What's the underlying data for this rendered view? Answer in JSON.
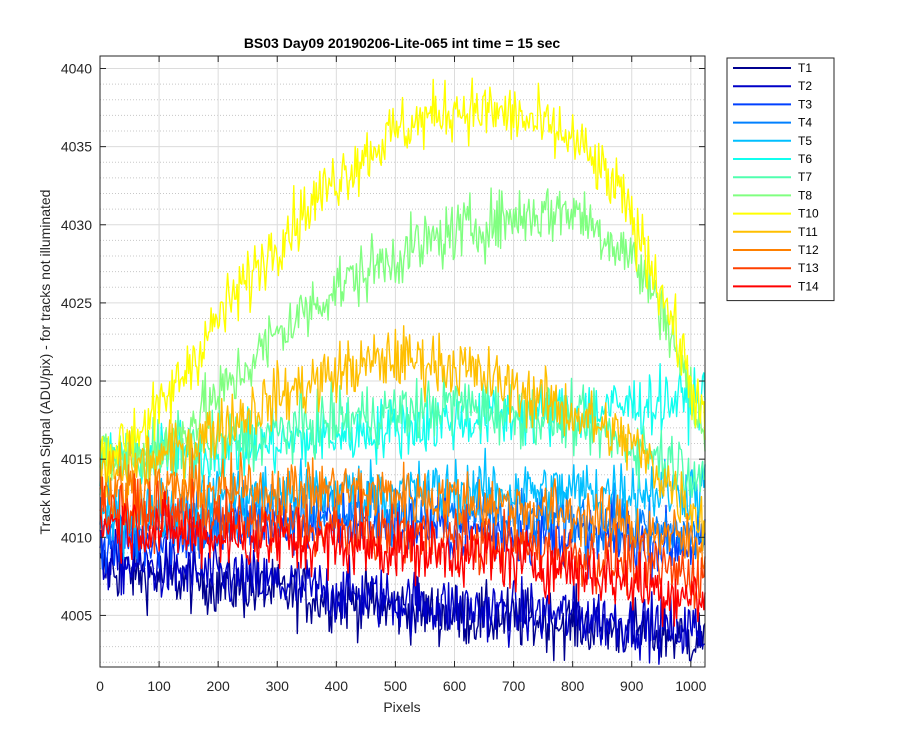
{
  "chart_data": {
    "type": "line",
    "title": "BS03 Day09 20190206-Lite-065 int time = 15 sec",
    "xlabel": "Pixels",
    "ylabel": "Track Mean Signal (ADU/pix) - for tracks not illuminated",
    "xlim": [
      0,
      1024
    ],
    "ylim": [
      4001.7,
      4040.8
    ],
    "xticks": [
      0,
      100,
      200,
      300,
      400,
      500,
      600,
      700,
      800,
      900,
      1000
    ],
    "yticks": [
      4005,
      4010,
      4015,
      4020,
      4025,
      4030,
      4035,
      4040
    ],
    "grid": true,
    "minor_grid": true,
    "legend_position": "outside-right",
    "series": [
      {
        "name": "T1",
        "color": "#00008f",
        "points": [
          [
            0,
            4008
          ],
          [
            200,
            4007
          ],
          [
            400,
            4006
          ],
          [
            600,
            4005
          ],
          [
            800,
            4004.5
          ],
          [
            1024,
            4003.5
          ]
        ]
      },
      {
        "name": "T2",
        "color": "#0000c8",
        "points": [
          [
            0,
            4008.5
          ],
          [
            200,
            4007.5
          ],
          [
            400,
            4006.5
          ],
          [
            600,
            4005.5
          ],
          [
            800,
            4005
          ],
          [
            1024,
            4004
          ]
        ]
      },
      {
        "name": "T3",
        "color": "#0040ff",
        "points": [
          [
            0,
            4009.5
          ],
          [
            200,
            4010.5
          ],
          [
            400,
            4011
          ],
          [
            600,
            4010.5
          ],
          [
            800,
            4010
          ],
          [
            1024,
            4009.5
          ]
        ]
      },
      {
        "name": "T4",
        "color": "#0080ff",
        "points": [
          [
            0,
            4010.5
          ],
          [
            200,
            4011.5
          ],
          [
            400,
            4012
          ],
          [
            600,
            4011.5
          ],
          [
            800,
            4011
          ],
          [
            1024,
            4010
          ]
        ]
      },
      {
        "name": "T5",
        "color": "#00bfff",
        "points": [
          [
            0,
            4011
          ],
          [
            200,
            4012.5
          ],
          [
            400,
            4013
          ],
          [
            600,
            4013
          ],
          [
            800,
            4013
          ],
          [
            1024,
            4013
          ]
        ]
      },
      {
        "name": "T6",
        "color": "#10ffef",
        "points": [
          [
            0,
            4015
          ],
          [
            200,
            4015.5
          ],
          [
            400,
            4016.5
          ],
          [
            600,
            4017.5
          ],
          [
            800,
            4018
          ],
          [
            1024,
            4019
          ]
        ]
      },
      {
        "name": "T7",
        "color": "#50ffaf",
        "points": [
          [
            0,
            4015
          ],
          [
            200,
            4016
          ],
          [
            400,
            4017.5
          ],
          [
            600,
            4018.5
          ],
          [
            800,
            4017.5
          ],
          [
            1024,
            4014
          ]
        ]
      },
      {
        "name": "T8",
        "color": "#80ff80",
        "points": [
          [
            0,
            4015
          ],
          [
            100,
            4015.5
          ],
          [
            200,
            4019
          ],
          [
            300,
            4023
          ],
          [
            400,
            4026
          ],
          [
            500,
            4028
          ],
          [
            600,
            4029.5
          ],
          [
            700,
            4030.5
          ],
          [
            800,
            4031
          ],
          [
            900,
            4028
          ],
          [
            960,
            4024
          ],
          [
            1024,
            4016
          ]
        ]
      },
      {
        "name": "T10",
        "color": "#ffff00",
        "points": [
          [
            0,
            4015
          ],
          [
            100,
            4018
          ],
          [
            200,
            4024
          ],
          [
            300,
            4029
          ],
          [
            400,
            4033
          ],
          [
            500,
            4036
          ],
          [
            600,
            4037.5
          ],
          [
            700,
            4037
          ],
          [
            800,
            4035.5
          ],
          [
            880,
            4032
          ],
          [
            950,
            4026
          ],
          [
            1024,
            4017
          ]
        ]
      },
      {
        "name": "T11",
        "color": "#ffbf00",
        "points": [
          [
            0,
            4014
          ],
          [
            100,
            4015
          ],
          [
            200,
            4017
          ],
          [
            300,
            4019
          ],
          [
            400,
            4020.5
          ],
          [
            500,
            4021.5
          ],
          [
            600,
            4021
          ],
          [
            700,
            4019.5
          ],
          [
            800,
            4018
          ],
          [
            900,
            4016
          ],
          [
            1024,
            4011
          ]
        ]
      },
      {
        "name": "T12",
        "color": "#ff8000",
        "points": [
          [
            0,
            4013
          ],
          [
            200,
            4013
          ],
          [
            400,
            4013
          ],
          [
            600,
            4012.5
          ],
          [
            800,
            4011.5
          ],
          [
            1024,
            4009.5
          ]
        ]
      },
      {
        "name": "T13",
        "color": "#ff4000",
        "points": [
          [
            0,
            4012
          ],
          [
            200,
            4011
          ],
          [
            400,
            4010.5
          ],
          [
            600,
            4010
          ],
          [
            800,
            4009
          ],
          [
            1024,
            4007.5
          ]
        ]
      },
      {
        "name": "T14",
        "color": "#ff0000",
        "points": [
          [
            0,
            4011
          ],
          [
            200,
            4010
          ],
          [
            400,
            4009.5
          ],
          [
            600,
            4009
          ],
          [
            800,
            4008
          ],
          [
            1024,
            4006
          ]
        ]
      }
    ]
  }
}
